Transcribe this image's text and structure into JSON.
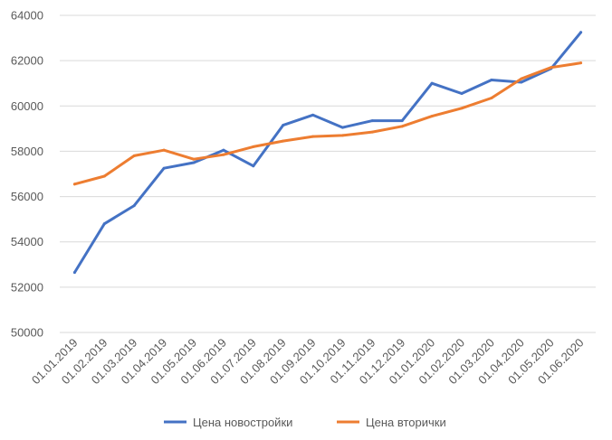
{
  "chart_data": {
    "type": "line",
    "title": "",
    "xlabel": "",
    "ylabel": "",
    "ylim": [
      50000,
      64000
    ],
    "yticks": [
      50000,
      52000,
      54000,
      56000,
      58000,
      60000,
      62000,
      64000
    ],
    "ytick_labels": [
      "50000",
      "52000",
      "54000",
      "56000",
      "58000",
      "60000",
      "62000",
      "64000"
    ],
    "grid": true,
    "legend_position": "bottom",
    "categories": [
      "01.01.2019",
      "01.02.2019",
      "01.03.2019",
      "01.04.2019",
      "01.05.2019",
      "01.06.2019",
      "01.07.2019",
      "01.08.2019",
      "01.09.2019",
      "01.10.2019",
      "01.11.2019",
      "01.12.2019",
      "01.01.2020",
      "01.02.2020",
      "01.03.2020",
      "01.04.2020",
      "01.05.2020",
      "01.06.2020"
    ],
    "series": [
      {
        "name": "Цена новостройки",
        "color": "#4472c4",
        "values": [
          52650,
          54800,
          55600,
          57250,
          57500,
          58050,
          57350,
          59150,
          59600,
          59050,
          59350,
          59350,
          61000,
          60550,
          61150,
          61050,
          61650,
          63250
        ]
      },
      {
        "name": "Цена вторички",
        "color": "#ed7d31",
        "values": [
          56550,
          56900,
          57800,
          58050,
          57650,
          57850,
          58200,
          58450,
          58650,
          58700,
          58850,
          59100,
          59550,
          59900,
          60350,
          61200,
          61700,
          61900
        ]
      }
    ]
  }
}
